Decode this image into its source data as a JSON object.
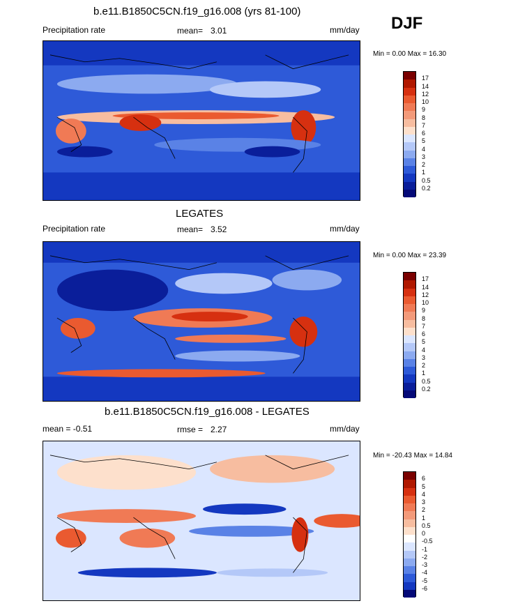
{
  "season": "DJF",
  "chart_data": [
    {
      "type": "heatmap",
      "title": "b.e11.B1850C5CN.f19_g16.008 (yrs 81-100)",
      "left_label": "Precipitation rate",
      "stat_label": "mean=",
      "stat_value": "3.01",
      "units": "mm/day",
      "minmax": "Min =   0.00 Max =  16.30",
      "min": 0.0,
      "max": 16.3,
      "colorbar_levels": [
        "17",
        "14",
        "12",
        "10",
        "9",
        "8",
        "7",
        "6",
        "5",
        "4",
        "3",
        "2",
        "1",
        "0.5",
        "0.2"
      ]
    },
    {
      "type": "heatmap",
      "title": "LEGATES",
      "left_label": "Precipitation rate",
      "stat_label": "mean=",
      "stat_value": "3.52",
      "units": "mm/day",
      "minmax": "Min =   0.00 Max =  23.39",
      "min": 0.0,
      "max": 23.39,
      "colorbar_levels": [
        "17",
        "14",
        "12",
        "10",
        "9",
        "8",
        "7",
        "6",
        "5",
        "4",
        "3",
        "2",
        "1",
        "0.5",
        "0.2"
      ]
    },
    {
      "type": "heatmap",
      "title": "b.e11.B1850C5CN.f19_g16.008 - LEGATES",
      "left_label": "mean =  -0.51",
      "stat_label": "rmse =",
      "stat_value": "2.27",
      "units": "mm/day",
      "minmax": "Min = -20.43 Max =  14.84",
      "min": -20.43,
      "max": 14.84,
      "colorbar_levels": [
        "6",
        "5",
        "4",
        "3",
        "2",
        "1",
        "0.5",
        "0",
        "-0.5",
        "-1",
        "-2",
        "-3",
        "-4",
        "-5",
        "-6"
      ]
    }
  ],
  "colors": {
    "precip_scale": [
      "#7a0000",
      "#b01800",
      "#d63010",
      "#ea5a30",
      "#f07a55",
      "#f39a7a",
      "#f7bda0",
      "#fde0cc",
      "#dbe6ff",
      "#b4c8f8",
      "#8caaf0",
      "#5a82e6",
      "#2e5ad8",
      "#1438c0",
      "#0a1e9a",
      "#050a78"
    ],
    "diff_scale": [
      "#7a0000",
      "#b01800",
      "#d63010",
      "#ea5a30",
      "#f07a55",
      "#f39a7a",
      "#f7bda0",
      "#fde0cc",
      "#ffffff",
      "#dbe6ff",
      "#b4c8f8",
      "#8caaf0",
      "#5a82e6",
      "#2e5ad8",
      "#1438c0",
      "#050a78"
    ]
  }
}
